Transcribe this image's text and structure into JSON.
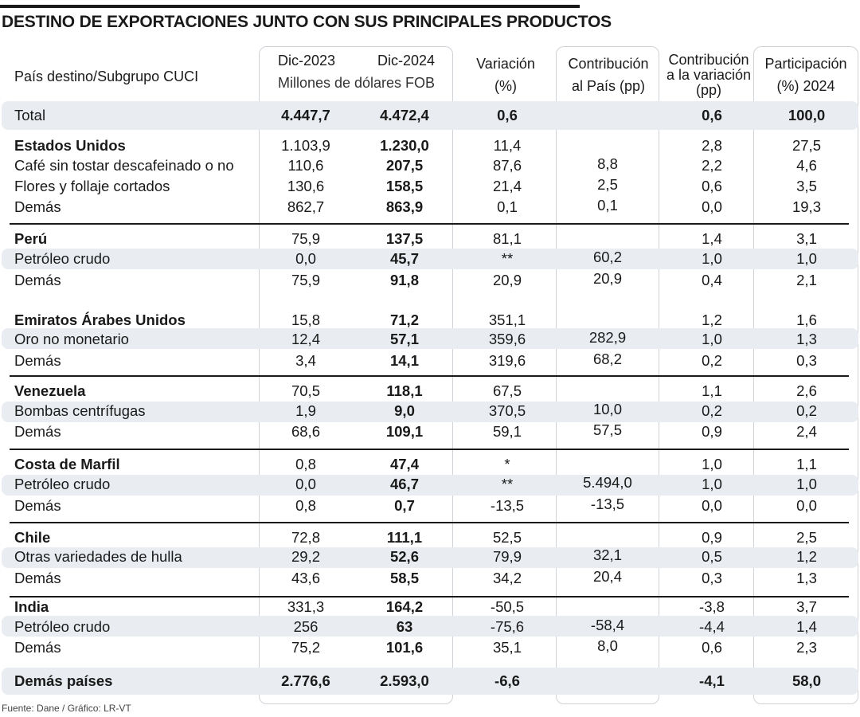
{
  "title": "DESTINO DE EXPORTACIONES JUNTO CON SUS PRINCIPALES PRODUCTOS",
  "headers": {
    "col0": "País destino/Subgrupo CUCI",
    "dic2023": "Dic-2023",
    "dic2024": "Dic-2024",
    "units": "Millones de dólares FOB",
    "variacion_1": "Variación",
    "variacion_2": "(%)",
    "contrib_pais_1": "Contribución",
    "contrib_pais_2": "al País (pp)",
    "contrib_var_1": "Contribución",
    "contrib_var_2": "a la variación",
    "contrib_var_3": "(pp)",
    "participacion_1": "Participación",
    "participacion_2": "(%) 2024"
  },
  "rows": [
    {
      "label": "Total",
      "v2023": "4.447,7",
      "v2024": "4.472,4",
      "var": "0,6",
      "cpais": "",
      "cvar": "0,6",
      "part": "100,0"
    },
    {
      "label": "Estados Unidos",
      "v2023": "1.103,9",
      "v2024": "1.230,0",
      "var": "11,4",
      "cpais": "",
      "cvar": "2,8",
      "part": "27,5"
    },
    {
      "label": "Café sin tostar descafeinado o no",
      "v2023": "110,6",
      "v2024": "207,5",
      "var": "87,6",
      "cpais": "8,8",
      "cvar": "2,2",
      "part": "4,6"
    },
    {
      "label": "Flores y follaje cortados",
      "v2023": "130,6",
      "v2024": "158,5",
      "var": "21,4",
      "cpais": "2,5",
      "cvar": "0,6",
      "part": "3,5"
    },
    {
      "label": "Demás",
      "v2023": "862,7",
      "v2024": "863,9",
      "var": "0,1",
      "cpais": "0,1",
      "cvar": "0,0",
      "part": "19,3"
    },
    {
      "label": "Perú",
      "v2023": "75,9",
      "v2024": "137,5",
      "var": "81,1",
      "cpais": "",
      "cvar": "1,4",
      "part": "3,1"
    },
    {
      "label": "Petróleo crudo",
      "v2023": "0,0",
      "v2024": "45,7",
      "var": "**",
      "cpais": "60,2",
      "cvar": "1,0",
      "part": "1,0"
    },
    {
      "label": "Demás",
      "v2023": "75,9",
      "v2024": "91,8",
      "var": "20,9",
      "cpais": "20,9",
      "cvar": "0,4",
      "part": "2,1"
    },
    {
      "label": "Emiratos Árabes Unidos",
      "v2023": "15,8",
      "v2024": "71,2",
      "var": "351,1",
      "cpais": "",
      "cvar": "1,2",
      "part": "1,6"
    },
    {
      "label": "Oro no monetario",
      "v2023": "12,4",
      "v2024": "57,1",
      "var": "359,6",
      "cpais": "282,9",
      "cvar": "1,0",
      "part": "1,3"
    },
    {
      "label": "Demás",
      "v2023": "3,4",
      "v2024": "14,1",
      "var": "319,6",
      "cpais": "68,2",
      "cvar": "0,2",
      "part": "0,3"
    },
    {
      "label": "Venezuela",
      "v2023": "70,5",
      "v2024": "118,1",
      "var": "67,5",
      "cpais": "",
      "cvar": "1,1",
      "part": "2,6"
    },
    {
      "label": "Bombas centrífugas",
      "v2023": "1,9",
      "v2024": "9,0",
      "var": "370,5",
      "cpais": "10,0",
      "cvar": "0,2",
      "part": "0,2"
    },
    {
      "label": "Demás",
      "v2023": "68,6",
      "v2024": "109,1",
      "var": "59,1",
      "cpais": "57,5",
      "cvar": "0,9",
      "part": "2,4"
    },
    {
      "label": "Costa de Marfil",
      "v2023": "0,8",
      "v2024": "47,4",
      "var": "*",
      "cpais": "",
      "cvar": "1,0",
      "part": "1,1"
    },
    {
      "label": "Petróleo crudo",
      "v2023": "0,0",
      "v2024": "46,7",
      "var": "**",
      "cpais": "5.494,0",
      "cvar": "1,0",
      "part": "1,0"
    },
    {
      "label": "Demás",
      "v2023": "0,8",
      "v2024": "0,7",
      "var": "-13,5",
      "cpais": "-13,5",
      "cvar": "0,0",
      "part": "0,0"
    },
    {
      "label": "Chile",
      "v2023": "72,8",
      "v2024": "111,1",
      "var": "52,5",
      "cpais": "",
      "cvar": "0,9",
      "part": "2,5"
    },
    {
      "label": "Otras variedades de hulla",
      "v2023": "29,2",
      "v2024": "52,6",
      "var": "79,9",
      "cpais": "32,1",
      "cvar": "0,5",
      "part": "1,2"
    },
    {
      "label": "Demás",
      "v2023": "43,6",
      "v2024": "58,5",
      "var": "34,2",
      "cpais": "20,4",
      "cvar": "0,3",
      "part": "1,3"
    },
    {
      "label": "India",
      "v2023": "331,3",
      "v2024": "164,2",
      "var": "-50,5",
      "cpais": "",
      "cvar": "-3,8",
      "part": "3,7"
    },
    {
      "label": "Petróleo crudo",
      "v2023": "256",
      "v2024": "63",
      "var": "-75,6",
      "cpais": "-58,4",
      "cvar": "-4,4",
      "part": "1,4"
    },
    {
      "label": "Demás",
      "v2023": "75,2",
      "v2024": "101,6",
      "var": "35,1",
      "cpais": "8,0",
      "cvar": "0,6",
      "part": "2,3"
    },
    {
      "label": "Demás países",
      "v2023": "2.776,6",
      "v2024": "2.593,0",
      "var": "-6,6",
      "cpais": "",
      "cvar": "-4,1",
      "part": "58,0"
    }
  ],
  "source": "Fuente: Dane / Gráfico: LR-VT",
  "colors": {
    "stripe": "#e9edf2",
    "box_border": "#cfd3d8",
    "text": "#1a1a1a"
  }
}
